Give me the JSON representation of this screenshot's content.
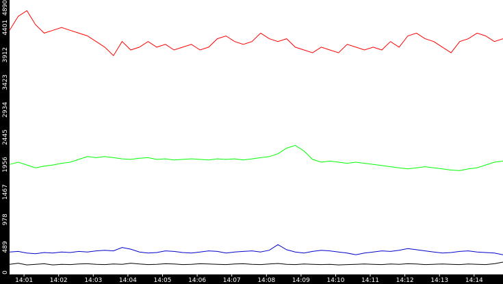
{
  "chart_data": {
    "type": "line",
    "title": "",
    "xlabel": "",
    "ylabel": "",
    "ylim": [
      0,
      4890
    ],
    "y_ticks": [
      "0",
      "489",
      "978",
      "1467",
      "1956",
      "2445",
      "2934",
      "3423",
      "3912",
      "4401",
      "4890"
    ],
    "x_ticks": [
      "14:01",
      "14:02",
      "14:03",
      "14:04",
      "14:05",
      "14:06",
      "14:07",
      "14:08",
      "14:09",
      "14:10",
      "14:11",
      "14:12",
      "14:13",
      "14:14"
    ],
    "x_range": [
      "14:00:35",
      "14:14:50"
    ],
    "grid": false,
    "legend": "none",
    "series": [
      {
        "color": "#ff0000",
        "x": [
          "14:00:35",
          "14:00:50",
          "14:01:05",
          "14:01:20",
          "14:01:35",
          "14:01:50",
          "14:02:05",
          "14:02:20",
          "14:02:35",
          "14:02:50",
          "14:03:05",
          "14:03:20",
          "14:03:35",
          "14:03:50",
          "14:04:05",
          "14:04:20",
          "14:04:35",
          "14:04:50",
          "14:05:05",
          "14:05:20",
          "14:05:35",
          "14:05:50",
          "14:06:05",
          "14:06:20",
          "14:06:35",
          "14:06:50",
          "14:07:05",
          "14:07:20",
          "14:07:35",
          "14:07:50",
          "14:08:05",
          "14:08:20",
          "14:08:35",
          "14:08:50",
          "14:09:05",
          "14:09:20",
          "14:09:35",
          "14:09:50",
          "14:10:05",
          "14:10:20",
          "14:10:35",
          "14:10:50",
          "14:11:05",
          "14:11:20",
          "14:11:35",
          "14:11:50",
          "14:12:05",
          "14:12:20",
          "14:12:35",
          "14:12:50",
          "14:13:05",
          "14:13:20",
          "14:13:35",
          "14:13:50",
          "14:14:05",
          "14:14:20",
          "14:14:35",
          "14:14:50"
        ],
        "values": [
          4350,
          4600,
          4700,
          4450,
          4300,
          4350,
          4400,
          4350,
          4300,
          4250,
          4150,
          4050,
          3900,
          4150,
          4000,
          4050,
          4150,
          4050,
          4100,
          4000,
          4050,
          4100,
          4000,
          4050,
          4200,
          4250,
          4150,
          4100,
          4150,
          4300,
          4200,
          4150,
          4200,
          4050,
          4000,
          3950,
          4050,
          4000,
          3950,
          4100,
          4050,
          4000,
          4050,
          4000,
          4150,
          4050,
          4250,
          4300,
          4200,
          4150,
          4050,
          3950,
          4150,
          4200,
          4300,
          4250,
          4150,
          4200
        ]
      },
      {
        "color": "#00ff00",
        "x": [
          "14:00:35",
          "14:00:50",
          "14:01:05",
          "14:01:20",
          "14:01:35",
          "14:01:50",
          "14:02:05",
          "14:02:20",
          "14:02:35",
          "14:02:50",
          "14:03:05",
          "14:03:20",
          "14:03:35",
          "14:03:50",
          "14:04:05",
          "14:04:20",
          "14:04:35",
          "14:04:50",
          "14:05:05",
          "14:05:20",
          "14:05:35",
          "14:05:50",
          "14:06:05",
          "14:06:20",
          "14:06:35",
          "14:06:50",
          "14:07:05",
          "14:07:20",
          "14:07:35",
          "14:07:50",
          "14:08:05",
          "14:08:20",
          "14:08:35",
          "14:08:50",
          "14:09:05",
          "14:09:20",
          "14:09:35",
          "14:09:50",
          "14:10:05",
          "14:10:20",
          "14:10:35",
          "14:10:50",
          "14:11:05",
          "14:11:20",
          "14:11:35",
          "14:11:50",
          "14:12:05",
          "14:12:20",
          "14:12:35",
          "14:12:50",
          "14:13:05",
          "14:13:20",
          "14:13:35",
          "14:13:50",
          "14:14:05",
          "14:14:20",
          "14:14:35",
          "14:14:50"
        ],
        "values": [
          1960,
          2000,
          1950,
          1900,
          1930,
          1950,
          1980,
          2000,
          2050,
          2100,
          2080,
          2100,
          2080,
          2060,
          2050,
          2070,
          2080,
          2050,
          2060,
          2040,
          2050,
          2060,
          2050,
          2040,
          2060,
          2050,
          2060,
          2040,
          2060,
          2080,
          2100,
          2150,
          2250,
          2300,
          2200,
          2050,
          2000,
          2020,
          2000,
          1980,
          2000,
          1980,
          1960,
          1940,
          1920,
          1900,
          1880,
          1900,
          1920,
          1900,
          1880,
          1860,
          1850,
          1880,
          1900,
          1950,
          2000,
          2020
        ]
      },
      {
        "color": "#0000cc",
        "x": [
          "14:00:35",
          "14:00:50",
          "14:01:05",
          "14:01:20",
          "14:01:35",
          "14:01:50",
          "14:02:05",
          "14:02:20",
          "14:02:35",
          "14:02:50",
          "14:03:05",
          "14:03:20",
          "14:03:35",
          "14:03:50",
          "14:04:05",
          "14:04:20",
          "14:04:35",
          "14:04:50",
          "14:05:05",
          "14:05:20",
          "14:05:35",
          "14:05:50",
          "14:06:05",
          "14:06:20",
          "14:06:35",
          "14:06:50",
          "14:07:05",
          "14:07:20",
          "14:07:35",
          "14:07:50",
          "14:08:05",
          "14:08:20",
          "14:08:35",
          "14:08:50",
          "14:09:05",
          "14:09:20",
          "14:09:35",
          "14:09:50",
          "14:10:05",
          "14:10:20",
          "14:10:35",
          "14:10:50",
          "14:11:05",
          "14:11:20",
          "14:11:35",
          "14:11:50",
          "14:12:05",
          "14:12:20",
          "14:12:35",
          "14:12:50",
          "14:13:05",
          "14:13:20",
          "14:13:35",
          "14:13:50",
          "14:14:05",
          "14:14:20",
          "14:14:35",
          "14:14:50"
        ],
        "values": [
          400,
          410,
          380,
          370,
          390,
          380,
          400,
          390,
          410,
          400,
          420,
          430,
          420,
          480,
          450,
          400,
          380,
          390,
          420,
          410,
          390,
          380,
          400,
          420,
          410,
          380,
          400,
          410,
          420,
          400,
          430,
          530,
          440,
          400,
          380,
          410,
          430,
          420,
          400,
          380,
          350,
          380,
          400,
          420,
          410,
          430,
          460,
          440,
          420,
          400,
          380,
          390,
          410,
          420,
          400,
          390,
          380,
          350
        ]
      },
      {
        "color": "#000000",
        "x": [
          "14:00:35",
          "14:00:50",
          "14:01:05",
          "14:01:20",
          "14:01:35",
          "14:01:50",
          "14:02:05",
          "14:02:20",
          "14:02:35",
          "14:02:50",
          "14:03:05",
          "14:03:20",
          "14:03:35",
          "14:03:50",
          "14:04:05",
          "14:04:20",
          "14:04:35",
          "14:04:50",
          "14:05:05",
          "14:05:20",
          "14:05:35",
          "14:05:50",
          "14:06:05",
          "14:06:20",
          "14:06:35",
          "14:06:50",
          "14:07:05",
          "14:07:20",
          "14:07:35",
          "14:07:50",
          "14:08:05",
          "14:08:20",
          "14:08:35",
          "14:08:50",
          "14:09:05",
          "14:09:20",
          "14:09:35",
          "14:09:50",
          "14:10:05",
          "14:10:20",
          "14:10:35",
          "14:10:50",
          "14:11:05",
          "14:11:20",
          "14:11:35",
          "14:11:50",
          "14:12:05",
          "14:12:20",
          "14:12:35",
          "14:12:50",
          "14:13:05",
          "14:13:20",
          "14:13:35",
          "14:13:50",
          "14:14:05",
          "14:14:20",
          "14:14:35",
          "14:14:50"
        ],
        "values": [
          180,
          200,
          170,
          180,
          190,
          170,
          180,
          175,
          185,
          190,
          180,
          175,
          185,
          180,
          200,
          185,
          175,
          180,
          190,
          185,
          175,
          180,
          190,
          185,
          180,
          175,
          185,
          190,
          180,
          175,
          185,
          195,
          180,
          175,
          185,
          180,
          175,
          180,
          170,
          175,
          180,
          185,
          180,
          175,
          185,
          180,
          190,
          185,
          175,
          180,
          185,
          180,
          175,
          185,
          180,
          175,
          190,
          220
        ]
      }
    ]
  },
  "colors": {
    "background": "#000000",
    "plot_background": "#ffffff",
    "axis_text": "#ffffff"
  }
}
